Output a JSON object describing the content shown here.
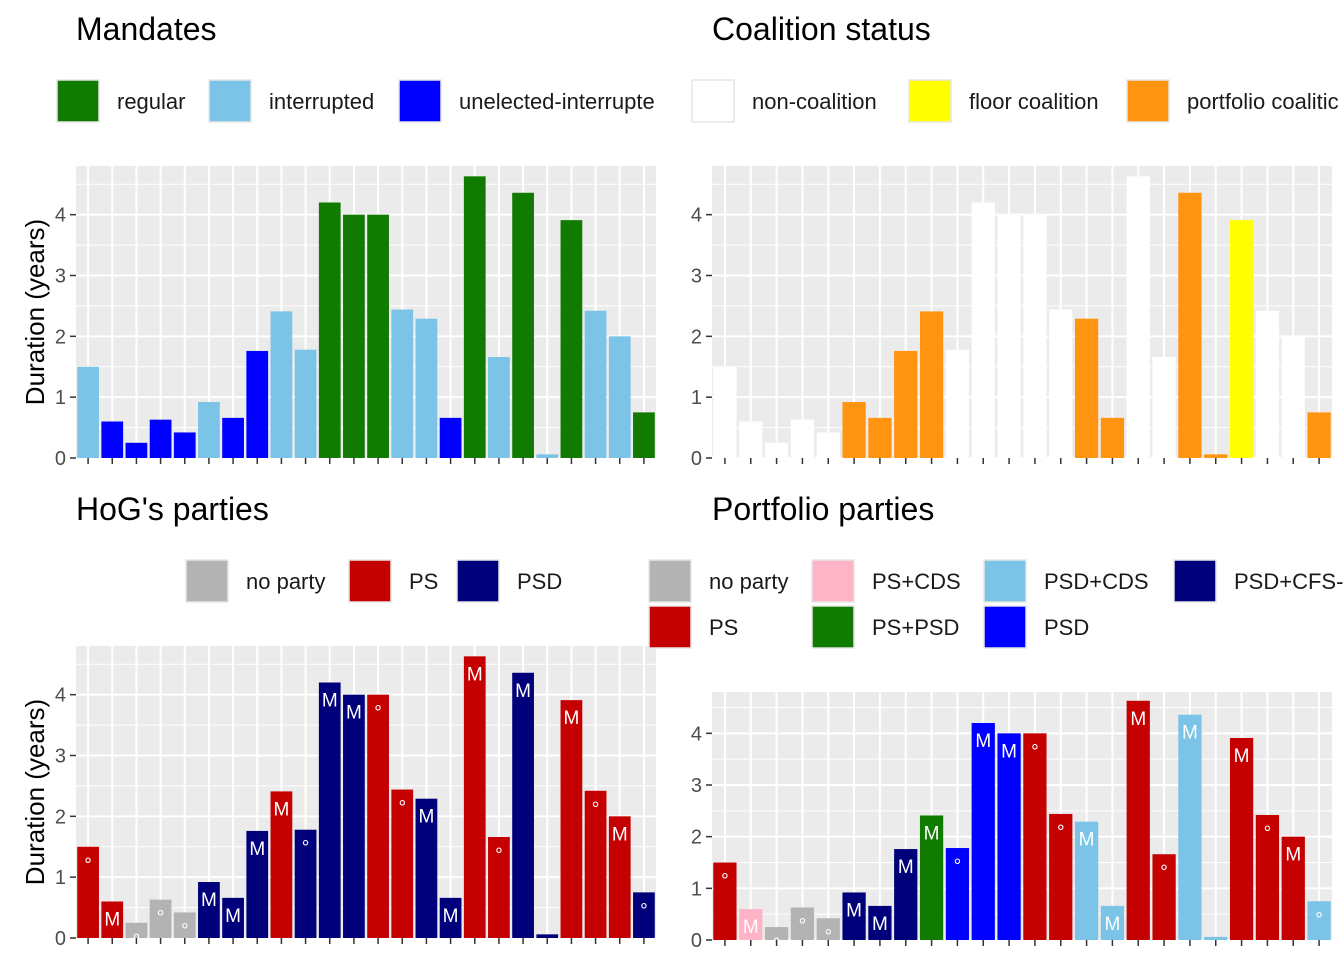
{
  "chart_data": [
    {
      "type": "bar",
      "title": "Mandates",
      "ylabel": "Duration (years)",
      "ylim": [
        0,
        4.8
      ],
      "yticks": [
        0,
        1,
        2,
        3,
        4
      ],
      "grid": true,
      "legend_position": "top",
      "legend": [
        {
          "name": "regular",
          "color": "#117a00"
        },
        {
          "name": "interrupted",
          "color": "#7bc4e8"
        },
        {
          "name": "unelected-interrupte",
          "color": "#0000ff"
        }
      ],
      "values": [
        1.5,
        0.6,
        0.25,
        0.63,
        0.42,
        0.92,
        0.66,
        1.76,
        2.41,
        1.78,
        4.2,
        4.0,
        4.0,
        2.44,
        2.29,
        0.66,
        4.63,
        1.66,
        4.36,
        0.06,
        3.91,
        2.42,
        2.0,
        0.75
      ],
      "fill": [
        "#7bc4e8",
        "#0000ff",
        "#0000ff",
        "#0000ff",
        "#0000ff",
        "#7bc4e8",
        "#0000ff",
        "#0000ff",
        "#7bc4e8",
        "#7bc4e8",
        "#117a00",
        "#117a00",
        "#117a00",
        "#7bc4e8",
        "#7bc4e8",
        "#0000ff",
        "#117a00",
        "#7bc4e8",
        "#117a00",
        "#7bc4e8",
        "#117a00",
        "#7bc4e8",
        "#7bc4e8",
        "#117a00"
      ]
    },
    {
      "type": "bar",
      "title": "Coalition status",
      "ylabel": "",
      "ylim": [
        0,
        4.8
      ],
      "yticks": [
        0,
        1,
        2,
        3,
        4
      ],
      "grid": true,
      "legend_position": "top",
      "legend": [
        {
          "name": "non-coalition",
          "color": "#ffffff"
        },
        {
          "name": "floor coalition",
          "color": "#ffff00"
        },
        {
          "name": "portfolio coalitic",
          "color": "#ff9410"
        }
      ],
      "values": [
        1.5,
        0.6,
        0.25,
        0.63,
        0.42,
        0.92,
        0.66,
        1.76,
        2.41,
        1.78,
        4.2,
        4.0,
        4.0,
        2.44,
        2.29,
        0.66,
        4.63,
        1.66,
        4.36,
        0.06,
        3.91,
        2.42,
        2.0,
        0.75
      ],
      "fill": [
        "#ffffff",
        "#ffffff",
        "#ffffff",
        "#ffffff",
        "#ffffff",
        "#ff9410",
        "#ff9410",
        "#ff9410",
        "#ff9410",
        "#ffffff",
        "#ffffff",
        "#ffffff",
        "#ffffff",
        "#ffffff",
        "#ff9410",
        "#ff9410",
        "#ffffff",
        "#ffffff",
        "#ff9410",
        "#ff9410",
        "#ffff00",
        "#ffffff",
        "#ffffff",
        "#ff9410"
      ]
    },
    {
      "type": "bar",
      "title": "HoG's parties",
      "ylabel": "Duration (years)",
      "ylim": [
        0,
        4.8
      ],
      "yticks": [
        0,
        1,
        2,
        3,
        4
      ],
      "grid": true,
      "legend_position": "top",
      "legend": [
        {
          "name": "no party",
          "color": "#b3b3b3"
        },
        {
          "name": "PS",
          "color": "#c40000"
        },
        {
          "name": "PSD",
          "color": "#00007a"
        }
      ],
      "values": [
        1.5,
        0.6,
        0.25,
        0.63,
        0.42,
        0.92,
        0.66,
        1.76,
        2.41,
        1.78,
        4.2,
        4.0,
        4.0,
        2.44,
        2.29,
        0.66,
        4.63,
        1.66,
        4.36,
        0.06,
        3.91,
        2.42,
        2.0,
        0.75
      ],
      "fill": [
        "#c40000",
        "#c40000",
        "#b3b3b3",
        "#b3b3b3",
        "#b3b3b3",
        "#00007a",
        "#00007a",
        "#00007a",
        "#c40000",
        "#00007a",
        "#00007a",
        "#00007a",
        "#c40000",
        "#c40000",
        "#00007a",
        "#00007a",
        "#c40000",
        "#c40000",
        "#00007a",
        "#00007a",
        "#c40000",
        "#c40000",
        "#c40000",
        "#00007a"
      ],
      "bar_labels": [
        "°",
        "M",
        "°",
        "°",
        "°",
        "M",
        "M",
        "M",
        "M",
        "°",
        "M",
        "M",
        "°",
        "°",
        "M",
        "M",
        "M",
        "°",
        "M",
        "°",
        "M",
        "°",
        "M",
        "°"
      ]
    },
    {
      "type": "bar",
      "title": "Portfolio parties",
      "ylabel": "",
      "ylim": [
        0,
        4.8
      ],
      "yticks": [
        0,
        1,
        2,
        3,
        4
      ],
      "grid": true,
      "legend_position": "top",
      "legend": [
        {
          "name": "no party",
          "color": "#b3b3b3"
        },
        {
          "name": "PS+CDS",
          "color": "#ffb3c6"
        },
        {
          "name": "PSD+CDS",
          "color": "#7bc4e8"
        },
        {
          "name": "PSD+CFS-",
          "color": "#00007a"
        },
        {
          "name": "PS",
          "color": "#c40000"
        },
        {
          "name": "PS+PSD",
          "color": "#117a00"
        },
        {
          "name": "PSD",
          "color": "#0000ff"
        }
      ],
      "values": [
        1.5,
        0.6,
        0.25,
        0.63,
        0.42,
        0.92,
        0.66,
        1.76,
        2.41,
        1.78,
        4.2,
        4.0,
        4.0,
        2.44,
        2.29,
        0.66,
        4.63,
        1.66,
        4.36,
        0.06,
        3.91,
        2.42,
        2.0,
        0.75
      ],
      "fill": [
        "#c40000",
        "#ffb3c6",
        "#b3b3b3",
        "#b3b3b3",
        "#b3b3b3",
        "#00007a",
        "#00007a",
        "#00007a",
        "#117a00",
        "#0000ff",
        "#0000ff",
        "#0000ff",
        "#c40000",
        "#c40000",
        "#7bc4e8",
        "#7bc4e8",
        "#c40000",
        "#c40000",
        "#7bc4e8",
        "#7bc4e8",
        "#c40000",
        "#c40000",
        "#c40000",
        "#7bc4e8"
      ],
      "bar_labels": [
        "°",
        "M",
        "°",
        "°",
        "°",
        "M",
        "M",
        "M",
        "M",
        "°",
        "M",
        "M",
        "°",
        "°",
        "M",
        "M",
        "M",
        "°",
        "M",
        "°",
        "M",
        "°",
        "M",
        "°"
      ]
    }
  ]
}
